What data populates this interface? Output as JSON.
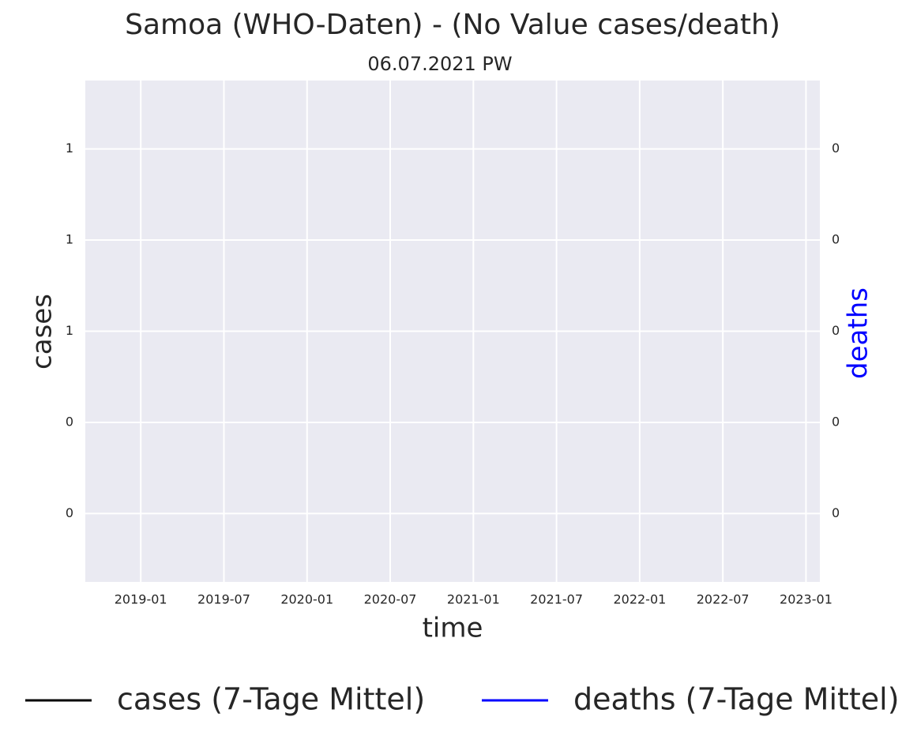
{
  "chart_data": {
    "type": "line",
    "title": "Samoa (WHO-Daten) - (No Value cases/death)",
    "subtitle": "06.07.2021 PW",
    "x_label": "time",
    "y_label": "cases",
    "y2_label": "deaths",
    "y2_label_color": "#0000ff",
    "x": [],
    "series": [
      {
        "name": "cases (7-Tage Mittel)",
        "color": "#000000",
        "values": []
      },
      {
        "name": "deaths (7-Tage Mittel)",
        "color": "#0000ff",
        "values": [],
        "axis": "y2"
      }
    ],
    "xlim": [
      "2018-09",
      "2023-02"
    ],
    "xticks": [
      "2019-01",
      "2019-07",
      "2020-01",
      "2020-07",
      "2021-01",
      "2021-07",
      "2022-01",
      "2022-07",
      "2023-01"
    ],
    "ylim": [
      0.05,
      1.15
    ],
    "yticks": [
      {
        "value": 0.2,
        "label": "0"
      },
      {
        "value": 0.4,
        "label": "0"
      },
      {
        "value": 0.6,
        "label": "1"
      },
      {
        "value": 0.8,
        "label": "1"
      },
      {
        "value": 1.0,
        "label": "1"
      }
    ],
    "y2lim": [
      0.005,
      0.115
    ],
    "y2ticks": [
      {
        "value": 0.02,
        "label": "0"
      },
      {
        "value": 0.04,
        "label": "0"
      },
      {
        "value": 0.06,
        "label": "0"
      },
      {
        "value": 0.08,
        "label": "0"
      },
      {
        "value": 0.1,
        "label": "0"
      }
    ],
    "grid": true,
    "legend": "below"
  }
}
